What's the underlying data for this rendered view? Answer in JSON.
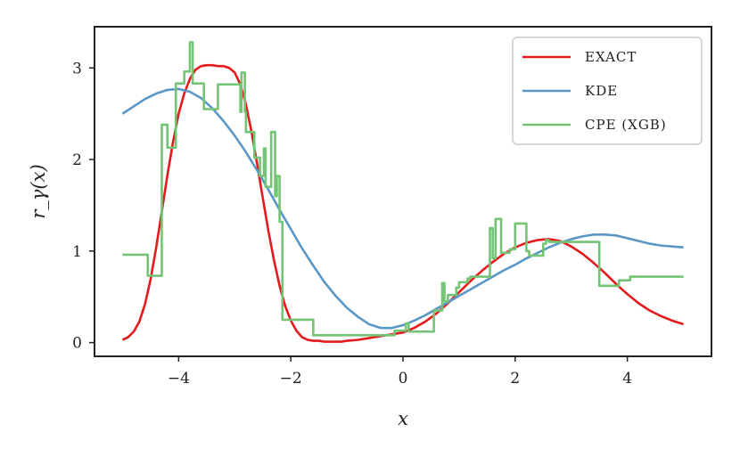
{
  "chart_data": {
    "type": "line",
    "xlabel": "x",
    "ylabel": "r_γ(x)",
    "xlim": [
      -5.5,
      5.5
    ],
    "ylim": [
      -0.15,
      3.45
    ],
    "xticks": [
      -4,
      -2,
      0,
      2,
      4
    ],
    "xtick_labels": [
      "−4",
      "−2",
      "0",
      "2",
      "4"
    ],
    "yticks": [
      0,
      1,
      2,
      3
    ],
    "ytick_labels": [
      "0",
      "1",
      "2",
      "3"
    ],
    "grid": false,
    "legend_position": "top-right",
    "series": [
      {
        "name": "EXACT",
        "color": "#e41a1c",
        "x": [
          -5.0,
          -4.9,
          -4.8,
          -4.7,
          -4.6,
          -4.5,
          -4.4,
          -4.3,
          -4.2,
          -4.1,
          -4.0,
          -3.9,
          -3.8,
          -3.7,
          -3.6,
          -3.5,
          -3.4,
          -3.3,
          -3.2,
          -3.1,
          -3.0,
          -2.9,
          -2.8,
          -2.7,
          -2.6,
          -2.5,
          -2.4,
          -2.3,
          -2.2,
          -2.1,
          -2.0,
          -1.9,
          -1.8,
          -1.7,
          -1.6,
          -1.5,
          -1.4,
          -1.3,
          -1.2,
          -1.1,
          -1.0,
          -0.8,
          -0.6,
          -0.4,
          -0.2,
          0.0,
          0.2,
          0.4,
          0.6,
          0.8,
          1.0,
          1.2,
          1.4,
          1.6,
          1.8,
          2.0,
          2.2,
          2.4,
          2.6,
          2.7,
          2.8,
          3.0,
          3.2,
          3.4,
          3.6,
          3.8,
          4.0,
          4.2,
          4.4,
          4.6,
          4.8,
          5.0
        ],
        "y": [
          0.03,
          0.06,
          0.12,
          0.23,
          0.42,
          0.69,
          1.04,
          1.43,
          1.83,
          2.19,
          2.5,
          2.72,
          2.88,
          2.98,
          3.02,
          3.03,
          3.03,
          3.02,
          3.02,
          3.0,
          2.95,
          2.82,
          2.6,
          2.3,
          1.95,
          1.58,
          1.22,
          0.9,
          0.62,
          0.4,
          0.24,
          0.13,
          0.06,
          0.03,
          0.02,
          0.02,
          0.01,
          0.01,
          0.01,
          0.01,
          0.02,
          0.03,
          0.05,
          0.07,
          0.09,
          0.11,
          0.16,
          0.23,
          0.32,
          0.43,
          0.55,
          0.67,
          0.78,
          0.88,
          0.97,
          1.04,
          1.09,
          1.12,
          1.13,
          1.12,
          1.11,
          1.05,
          0.97,
          0.87,
          0.76,
          0.64,
          0.53,
          0.43,
          0.35,
          0.29,
          0.24,
          0.2
        ]
      },
      {
        "name": "KDE",
        "color": "#5b97c6",
        "x": [
          -5.0,
          -4.8,
          -4.6,
          -4.4,
          -4.2,
          -4.0,
          -3.8,
          -3.6,
          -3.4,
          -3.2,
          -3.0,
          -2.8,
          -2.6,
          -2.4,
          -2.2,
          -2.0,
          -1.8,
          -1.6,
          -1.4,
          -1.2,
          -1.0,
          -0.8,
          -0.6,
          -0.4,
          -0.2,
          0.0,
          0.2,
          0.4,
          0.6,
          0.8,
          1.0,
          1.2,
          1.4,
          1.6,
          1.8,
          2.0,
          2.2,
          2.4,
          2.6,
          2.8,
          3.0,
          3.2,
          3.4,
          3.6,
          3.8,
          4.0,
          4.2,
          4.4,
          4.6,
          4.8,
          5.0
        ],
        "y": [
          2.5,
          2.58,
          2.66,
          2.72,
          2.76,
          2.77,
          2.74,
          2.67,
          2.56,
          2.42,
          2.26,
          2.08,
          1.88,
          1.67,
          1.45,
          1.24,
          1.03,
          0.84,
          0.66,
          0.51,
          0.38,
          0.28,
          0.2,
          0.16,
          0.16,
          0.19,
          0.24,
          0.3,
          0.37,
          0.44,
          0.51,
          0.58,
          0.65,
          0.72,
          0.79,
          0.85,
          0.92,
          0.98,
          1.04,
          1.09,
          1.13,
          1.16,
          1.18,
          1.18,
          1.17,
          1.14,
          1.11,
          1.08,
          1.06,
          1.05,
          1.04
        ]
      },
      {
        "name": "CPE (XGB)",
        "color": "#74c476",
        "x": [
          -5.0,
          -4.55,
          -4.55,
          -4.3,
          -4.3,
          -4.2,
          -4.2,
          -4.05,
          -4.05,
          -3.9,
          -3.9,
          -3.8,
          -3.8,
          -3.75,
          -3.75,
          -3.55,
          -3.55,
          -3.3,
          -3.3,
          -2.9,
          -2.9,
          -2.88,
          -2.88,
          -2.82,
          -2.82,
          -2.8,
          -2.8,
          -2.65,
          -2.65,
          -2.55,
          -2.55,
          -2.48,
          -2.48,
          -2.45,
          -2.45,
          -2.35,
          -2.35,
          -2.28,
          -2.28,
          -2.25,
          -2.25,
          -2.2,
          -2.2,
          -2.15,
          -2.15,
          -2.1,
          -2.1,
          -1.6,
          -1.6,
          -1.0,
          -1.0,
          -0.15,
          -0.15,
          0.05,
          0.05,
          0.1,
          0.1,
          0.55,
          0.55,
          0.7,
          0.7,
          0.74,
          0.74,
          0.8,
          0.8,
          0.95,
          0.95,
          1.0,
          1.0,
          1.15,
          1.15,
          1.2,
          1.2,
          1.55,
          1.55,
          1.6,
          1.6,
          1.65,
          1.65,
          1.75,
          1.75,
          1.9,
          1.9,
          2.0,
          2.0,
          2.2,
          2.2,
          2.25,
          2.25,
          2.5,
          2.5,
          2.55,
          2.55,
          2.6,
          2.6,
          2.75,
          2.75,
          3.5,
          3.5,
          3.75,
          3.75,
          3.85,
          3.85,
          4.05,
          4.05,
          4.1,
          4.1,
          5.0
        ],
        "y": [
          0.96,
          0.96,
          0.73,
          0.73,
          2.38,
          2.38,
          2.13,
          2.13,
          2.83,
          2.83,
          2.96,
          2.96,
          3.28,
          3.28,
          2.83,
          2.83,
          2.55,
          2.55,
          2.82,
          2.82,
          2.52,
          2.52,
          2.95,
          2.95,
          2.52,
          2.52,
          2.3,
          2.3,
          2.02,
          2.02,
          1.82,
          1.82,
          2.12,
          2.12,
          1.7,
          1.7,
          2.3,
          2.3,
          1.6,
          1.6,
          1.82,
          1.82,
          1.32,
          1.32,
          0.25,
          0.25,
          0.25,
          0.25,
          0.08,
          0.08,
          0.08,
          0.08,
          0.13,
          0.13,
          0.21,
          0.21,
          0.12,
          0.12,
          0.35,
          0.35,
          0.65,
          0.65,
          0.45,
          0.45,
          0.52,
          0.52,
          0.6,
          0.6,
          0.66,
          0.66,
          0.7,
          0.7,
          0.72,
          0.72,
          1.25,
          1.25,
          0.92,
          0.92,
          1.35,
          1.35,
          0.98,
          0.98,
          1.02,
          1.02,
          1.3,
          1.3,
          1.0,
          1.0,
          0.95,
          0.95,
          1.08,
          1.08,
          1.12,
          1.12,
          1.1,
          1.1,
          1.1,
          1.1,
          0.62,
          0.62,
          0.62,
          0.62,
          0.68,
          0.68,
          0.72,
          0.72,
          0.72,
          0.72
        ]
      }
    ]
  }
}
